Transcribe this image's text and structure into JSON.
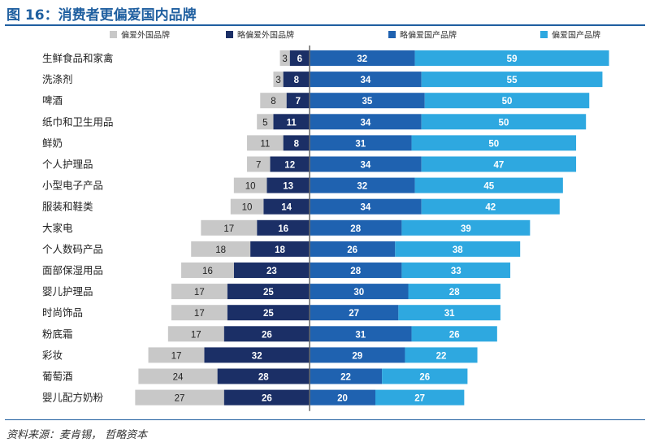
{
  "title": "图 16：消费者更偏爱国内品牌",
  "source": "资料来源：麦肯锡，  哲略资本",
  "chart_data": {
    "type": "bar",
    "stacked": "diverging",
    "orientation": "horizontal",
    "legend_position": "top",
    "categories": [
      "生鲜食品和家禽",
      "洗涤剂",
      "啤酒",
      "纸巾和卫生用品",
      "鲜奶",
      "个人护理品",
      "小型电子产品",
      "服装和鞋类",
      "大家电",
      "个人数码产品",
      "面部保湿用品",
      "婴儿护理品",
      "时尚饰品",
      "粉底霜",
      "彩妆",
      "葡萄酒",
      "婴儿配方奶粉"
    ],
    "series": [
      {
        "name": "偏爱外国品牌",
        "color": "#c8c8c8",
        "side": "left",
        "values": [
          3,
          3,
          8,
          5,
          11,
          7,
          10,
          10,
          17,
          18,
          16,
          17,
          17,
          17,
          17,
          24,
          27
        ]
      },
      {
        "name": "略偏爱外国品牌",
        "color": "#1b2f66",
        "side": "left",
        "values": [
          6,
          8,
          7,
          11,
          8,
          12,
          13,
          14,
          16,
          18,
          23,
          25,
          25,
          26,
          32,
          28,
          26
        ]
      },
      {
        "name": "略偏爱国产品牌",
        "color": "#1f62b0",
        "side": "right",
        "values": [
          32,
          34,
          35,
          34,
          31,
          34,
          32,
          34,
          28,
          26,
          28,
          30,
          27,
          31,
          29,
          22,
          20
        ]
      },
      {
        "name": "偏爱国产品牌",
        "color": "#2ea8e0",
        "side": "right",
        "values": [
          59,
          55,
          50,
          50,
          50,
          47,
          45,
          42,
          39,
          38,
          33,
          28,
          31,
          26,
          22,
          26,
          27
        ]
      }
    ],
    "axis_color": "#666666",
    "label_dark_text": "#222222",
    "label_light_text": "#ffffff"
  }
}
